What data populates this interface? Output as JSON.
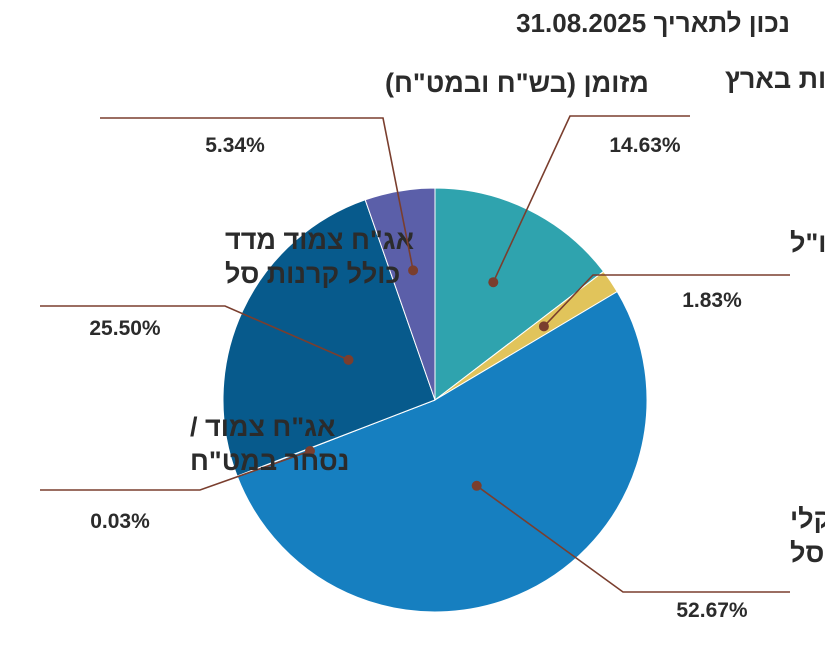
{
  "chart_data": {
    "type": "pie",
    "title": "נכון לתאריך 31.08.2025",
    "slices": [
      {
        "label_lines": [
          "מניות בארץ"
        ],
        "value": 14.63,
        "value_label": "14.63%",
        "color": "#2fa3ae"
      },
      {
        "label_lines": [
          "מניות בחו\"ל"
        ],
        "value": 1.83,
        "value_label": "1.83%",
        "color": "#e1c45b"
      },
      {
        "label_lines": [
          "אג\"ח שקלי",
          "כולל קרנות סל"
        ],
        "value": 52.67,
        "value_label": "52.67%",
        "color": "#167fc0"
      },
      {
        "label_lines": [
          "אג\"ח צמוד /",
          "נסחר במט\"ח"
        ],
        "value": 0.03,
        "value_label": "0.03%",
        "color": "#167fc0"
      },
      {
        "label_lines": [
          "אג\"ח צמוד מדד",
          "כולל קרנות סל"
        ],
        "value": 25.5,
        "value_label": "25.50%",
        "color": "#075a8c"
      },
      {
        "label_lines": [
          "מזומן (בש\"ח ובמט\"ח)"
        ],
        "value": 5.34,
        "value_label": "5.34%",
        "color": "#5b5fa9"
      }
    ],
    "start_angle_deg": 0,
    "direction": "clockwise"
  }
}
